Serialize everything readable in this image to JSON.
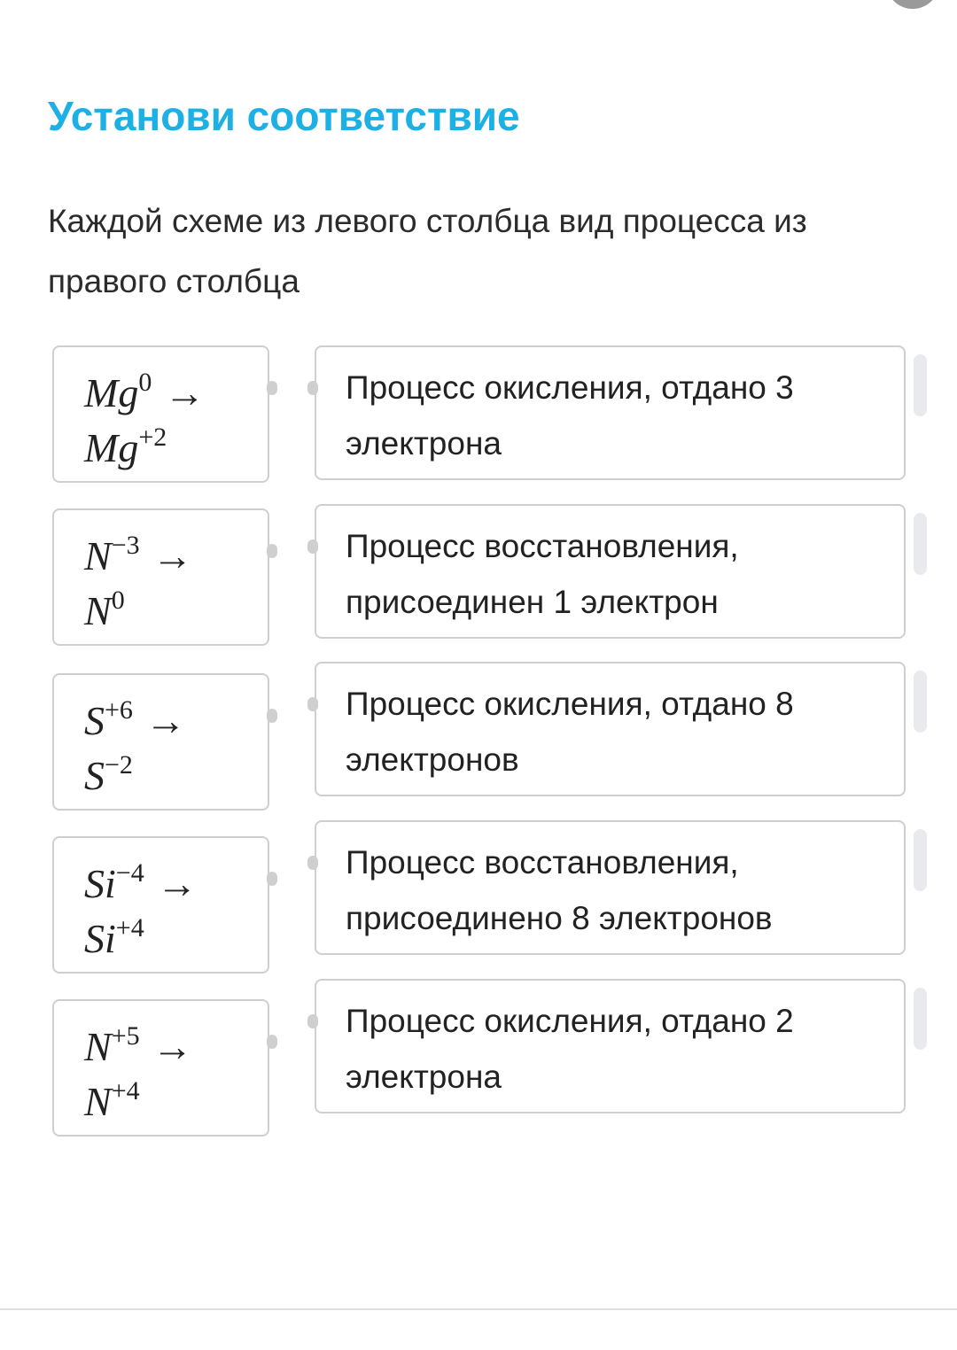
{
  "title": "Установи соответствие",
  "instruction": "Каждой схеме из левого столбца вид процесса из правого столбца",
  "left_items": [
    {
      "element": "Mg",
      "from": "0",
      "to": "+2",
      "arrow": "→"
    },
    {
      "element": "N",
      "from": "−3",
      "to": "0",
      "arrow": "→"
    },
    {
      "element": "S",
      "from": "+6",
      "to": "−2",
      "arrow": "→"
    },
    {
      "element": "Si",
      "from": "−4",
      "to": "+4",
      "arrow": "→"
    },
    {
      "element": "N",
      "from": "+5",
      "to": "+4",
      "arrow": "→"
    }
  ],
  "right_items": [
    {
      "label": "Процесс окисления, отдано 3 электрона"
    },
    {
      "label": "Процесс восстановления, присоединен 1 электрон"
    },
    {
      "label": "Процесс окисления, отдано 8 электронов"
    },
    {
      "label": "Процесс восстановления, присоединено 8 электронов"
    },
    {
      "label": "Процесс окисления, отдано 2 электрона"
    }
  ],
  "colors": {
    "title": "#1cb0e4",
    "border": "#cfcfcf",
    "handle": "#e8eaee"
  }
}
